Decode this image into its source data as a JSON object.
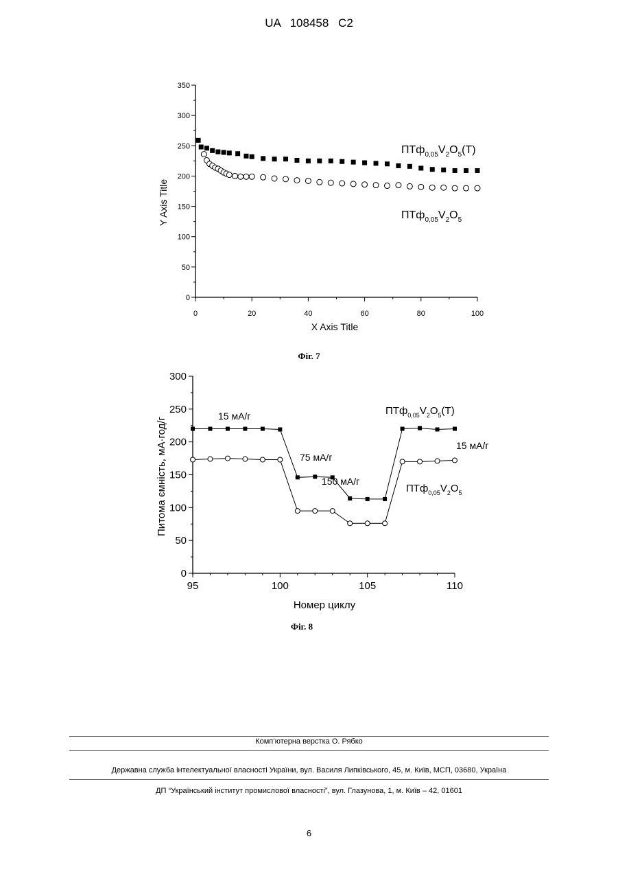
{
  "header": {
    "doc_id": "UA   108458   C2"
  },
  "fig7": {
    "caption": "Фіг. 7",
    "chart_data": {
      "type": "scatter",
      "xlabel": "X Axis Title",
      "ylabel": "Y Axis Title",
      "xlim": [
        0,
        100
      ],
      "ylim": [
        0,
        350
      ],
      "x_ticks": [
        "0",
        "20",
        "40",
        "60",
        "80",
        "100"
      ],
      "y_ticks": [
        "0",
        "50",
        "100",
        "150",
        "200",
        "250",
        "300",
        "350"
      ],
      "series": [
        {
          "name": "ПТф0,05V2O5(Т)",
          "name_parts": [
            "ПТф",
            "0,05",
            "V",
            "2",
            "O",
            "5",
            "(T)"
          ],
          "marker": "filled-square",
          "points": [
            [
              1,
              259
            ],
            [
              2,
              248
            ],
            [
              4,
              246
            ],
            [
              6,
              242
            ],
            [
              8,
              240
            ],
            [
              10,
              239
            ],
            [
              12,
              238
            ],
            [
              15,
              237
            ],
            [
              18,
              233
            ],
            [
              20,
              232
            ],
            [
              24,
              229
            ],
            [
              28,
              228
            ],
            [
              32,
              228
            ],
            [
              36,
              226
            ],
            [
              40,
              225
            ],
            [
              44,
              225
            ],
            [
              48,
              225
            ],
            [
              52,
              224
            ],
            [
              56,
              223
            ],
            [
              60,
              222
            ],
            [
              64,
              221
            ],
            [
              68,
              220
            ],
            [
              72,
              217
            ],
            [
              76,
              216
            ],
            [
              80,
              213
            ],
            [
              84,
              211
            ],
            [
              88,
              210
            ],
            [
              92,
              209
            ],
            [
              96,
              209
            ],
            [
              100,
              209
            ]
          ]
        },
        {
          "name": "ПТф0,05V2O5",
          "name_parts": [
            "ПТф",
            "0,05",
            "V",
            "2",
            "O",
            "5",
            ""
          ],
          "marker": "open-circle",
          "points": [
            [
              3,
              236
            ],
            [
              4,
              226
            ],
            [
              5,
              220
            ],
            [
              6,
              217
            ],
            [
              7,
              214
            ],
            [
              8,
              212
            ],
            [
              9,
              209
            ],
            [
              10,
              206
            ],
            [
              11,
              204
            ],
            [
              12,
              202
            ],
            [
              14,
              200
            ],
            [
              16,
              199
            ],
            [
              18,
              199
            ],
            [
              20,
              199
            ],
            [
              24,
              198
            ],
            [
              28,
              196
            ],
            [
              32,
              195
            ],
            [
              36,
              193
            ],
            [
              40,
              192
            ],
            [
              44,
              190
            ],
            [
              48,
              189
            ],
            [
              52,
              188
            ],
            [
              56,
              187
            ],
            [
              60,
              186
            ],
            [
              64,
              185
            ],
            [
              68,
              184
            ],
            [
              72,
              185
            ],
            [
              76,
              183
            ],
            [
              80,
              182
            ],
            [
              84,
              181
            ],
            [
              88,
              181
            ],
            [
              92,
              180
            ],
            [
              96,
              180
            ],
            [
              100,
              180
            ]
          ]
        }
      ]
    }
  },
  "fig8": {
    "caption": "Фіг. 8",
    "chart_data": {
      "type": "line",
      "xlabel": "Номер циклу",
      "ylabel": "Питома ємність, мА·год/г",
      "xlim": [
        95,
        110
      ],
      "ylim": [
        0,
        300
      ],
      "x_ticks": [
        "95",
        "100",
        "105",
        "110"
      ],
      "y_ticks": [
        "0",
        "50",
        "100",
        "150",
        "200",
        "250",
        "300"
      ],
      "series": [
        {
          "name": "ПТф0,05V2O5(Т)",
          "name_parts": [
            "ПТф",
            "0,05",
            "V",
            "2",
            "O",
            "5",
            "(T)"
          ],
          "marker": "filled-square",
          "x": [
            95,
            96,
            97,
            98,
            99,
            100,
            101,
            102,
            103,
            104,
            105,
            106,
            107,
            108,
            109,
            110
          ],
          "values": [
            220,
            220,
            220,
            220,
            220,
            219,
            146,
            147,
            146,
            114,
            113,
            113,
            220,
            221,
            219,
            220
          ]
        },
        {
          "name": "ПТф0,05V2O5",
          "name_parts": [
            "ПТф",
            "0,05",
            "V",
            "2",
            "O",
            "5",
            ""
          ],
          "marker": "open-circle",
          "x": [
            95,
            96,
            97,
            98,
            99,
            100,
            101,
            102,
            103,
            104,
            105,
            106,
            107,
            108,
            109,
            110
          ],
          "values": [
            173,
            174,
            175,
            174,
            173,
            173,
            95,
            95,
            95,
            76,
            76,
            76,
            170,
            170,
            171,
            172
          ]
        }
      ],
      "annotations": [
        "15 мА/г",
        "75 мА/г",
        "150 мА/г",
        "15 мА/г"
      ]
    }
  },
  "footer": {
    "line1": "Комп’ютерна верстка  О. Рябко",
    "line2": "Державна служба інтелектуальної власності України, вул. Василя Липківського, 45, м. Київ, МСП, 03680, Україна",
    "line3": "ДП “Український інститут промислової власності”, вул. Глазунова, 1, м. Київ – 42, 01601"
  },
  "page_number": "6",
  "colors": {
    "ink": "#000000",
    "rule": "#555555",
    "background": "#ffffff"
  }
}
